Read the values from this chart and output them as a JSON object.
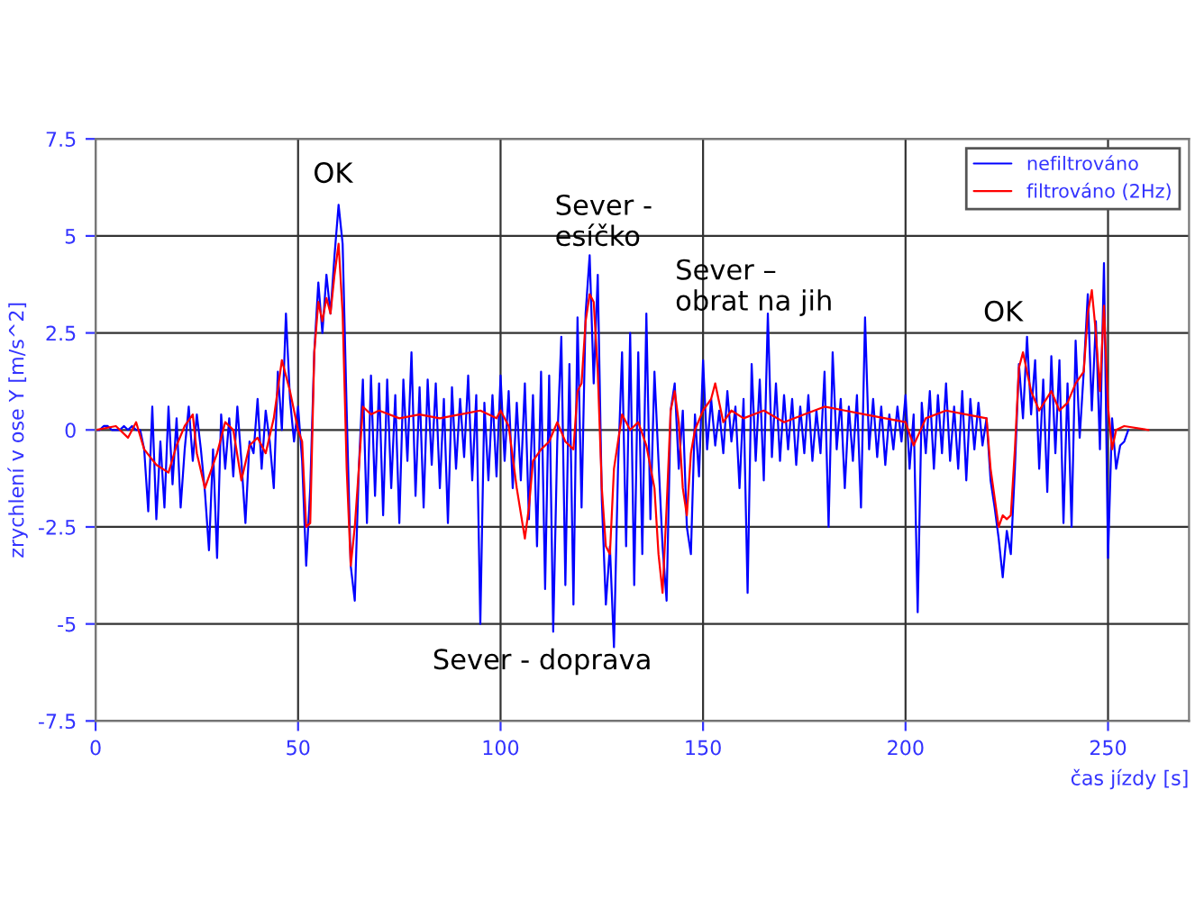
{
  "chart_data": {
    "type": "line",
    "ylabel": "zrychlení v ose Y [m/s^2]",
    "xlabel": "čas jízdy [s]",
    "xlim": [
      0,
      270
    ],
    "xticks": [
      0,
      50,
      100,
      150,
      200,
      250
    ],
    "ylim": [
      -7.5,
      7.5
    ],
    "yticks": [
      -7.5,
      -5,
      -2.5,
      0,
      2.5,
      5,
      7.5
    ],
    "grid": true,
    "legend": "top right",
    "line_style": "solid",
    "marker": "none",
    "series": [
      {
        "name": "nefiltrováno",
        "color": "#0000ff",
        "x": [
          0,
          1,
          2,
          3,
          4,
          5,
          6,
          7,
          8,
          9,
          10,
          11,
          12,
          13,
          14,
          15,
          16,
          17,
          18,
          19,
          20,
          21,
          22,
          23,
          24,
          25,
          26,
          27,
          28,
          29,
          30,
          31,
          32,
          33,
          34,
          35,
          36,
          37,
          38,
          39,
          40,
          41,
          42,
          43,
          44,
          45,
          46,
          47,
          48,
          49,
          50,
          51,
          52,
          53,
          54,
          55,
          56,
          57,
          58,
          59,
          60,
          61,
          62,
          63,
          64,
          65,
          66,
          67,
          68,
          69,
          70,
          71,
          72,
          73,
          74,
          75,
          76,
          77,
          78,
          79,
          80,
          81,
          82,
          83,
          84,
          85,
          86,
          87,
          88,
          89,
          90,
          91,
          92,
          93,
          94,
          95,
          96,
          97,
          98,
          99,
          100,
          101,
          102,
          103,
          104,
          105,
          106,
          107,
          108,
          109,
          110,
          111,
          112,
          113,
          114,
          115,
          116,
          117,
          118,
          119,
          120,
          121,
          122,
          123,
          124,
          125,
          126,
          127,
          128,
          129,
          130,
          131,
          132,
          133,
          134,
          135,
          136,
          137,
          138,
          139,
          140,
          141,
          142,
          143,
          144,
          145,
          146,
          147,
          148,
          149,
          150,
          151,
          152,
          153,
          154,
          155,
          156,
          157,
          158,
          159,
          160,
          161,
          162,
          163,
          164,
          165,
          166,
          167,
          168,
          169,
          170,
          171,
          172,
          173,
          174,
          175,
          176,
          177,
          178,
          179,
          180,
          181,
          182,
          183,
          184,
          185,
          186,
          187,
          188,
          189,
          190,
          191,
          192,
          193,
          194,
          195,
          196,
          197,
          198,
          199,
          200,
          201,
          202,
          203,
          204,
          205,
          206,
          207,
          208,
          209,
          210,
          211,
          212,
          213,
          214,
          215,
          216,
          217,
          218,
          219,
          220,
          221,
          222,
          223,
          224,
          225,
          226,
          227,
          228,
          229,
          230,
          231,
          232,
          233,
          234,
          235,
          236,
          237,
          238,
          239,
          240,
          241,
          242,
          243,
          244,
          245,
          246,
          247,
          248,
          249,
          250,
          251,
          252,
          253,
          254,
          255
        ],
        "values": [
          0,
          0,
          0.1,
          0.1,
          0,
          0,
          0,
          0.1,
          0,
          0.1,
          0,
          0,
          -0.5,
          -2.1,
          0.6,
          -2.3,
          -0.3,
          -2.0,
          0.6,
          -1.4,
          0.3,
          -2.0,
          -0.5,
          0.6,
          -0.8,
          0.4,
          -0.5,
          -1.6,
          -3.1,
          -0.5,
          -3.3,
          0.4,
          -1.0,
          0.3,
          -1.2,
          0.6,
          -0.8,
          -2.4,
          -0.3,
          -0.6,
          0.8,
          -1.0,
          0.5,
          -0.3,
          -1.5,
          1.5,
          0.0,
          3.0,
          0.8,
          -0.3,
          0.6,
          -0.8,
          -3.5,
          -1.5,
          2.0,
          3.8,
          2.5,
          4.0,
          3.0,
          4.5,
          5.8,
          4.8,
          0.5,
          -3.5,
          -4.4,
          -1.0,
          1.3,
          -2.4,
          1.4,
          -1.7,
          1.2,
          -2.2,
          1.3,
          -1.5,
          0.9,
          -2.4,
          1.3,
          -0.8,
          2.0,
          -1.7,
          1.1,
          -2.0,
          1.3,
          -0.9,
          1.2,
          -1.5,
          0.8,
          -2.4,
          1.1,
          -1.0,
          0.8,
          -0.7,
          1.4,
          -1.3,
          0.9,
          -5.0,
          0.7,
          -1.3,
          0.9,
          -1.2,
          1.4,
          -0.8,
          1.0,
          -1.5,
          0.7,
          -1.3,
          1.2,
          -2.3,
          0.9,
          -3.0,
          1.5,
          -4.1,
          1.4,
          -5.2,
          -0.3,
          2.4,
          -4.0,
          1.7,
          -4.5,
          2.9,
          -2.0,
          3.0,
          4.5,
          1.2,
          4.0,
          -1.8,
          -4.5,
          -3.0,
          -5.6,
          -1.0,
          2.0,
          -3.0,
          2.5,
          -4.0,
          2.0,
          -3.2,
          3.0,
          -2.3,
          1.5,
          -0.8,
          -3.0,
          -4.4,
          0.5,
          1.2,
          -1.0,
          0.5,
          -2.5,
          -3.2,
          0.4,
          -1.2,
          1.8,
          -0.5,
          0.8,
          -0.4,
          0.5,
          -0.6,
          1.0,
          -0.3,
          0.6,
          -1.5,
          0.8,
          -4.2,
          1.7,
          -0.8,
          1.3,
          -1.3,
          3.0,
          -0.7,
          1.2,
          -0.8,
          0.9,
          -0.5,
          0.8,
          -0.9,
          0.6,
          -0.6,
          0.9,
          -0.8,
          0.5,
          -0.6,
          1.5,
          -2.5,
          2.0,
          -0.5,
          0.8,
          -1.5,
          0.6,
          -0.8,
          0.9,
          -2.0,
          2.9,
          -0.5,
          0.8,
          -0.7,
          0.6,
          -0.9,
          0.4,
          -0.5,
          0.6,
          -0.3,
          0.9,
          -1.0,
          0.4,
          -4.7,
          0.7,
          -0.6,
          1.0,
          -1.0,
          0.9,
          -0.6,
          1.2,
          -0.8,
          0.6,
          -1.0,
          1.0,
          -1.3,
          0.8,
          -0.5,
          0.7,
          -0.4,
          0.3,
          -1.3,
          -2.0,
          -2.8,
          -3.8,
          -2.6,
          -3.2,
          -1.0,
          1.7,
          0.3,
          2.4,
          0.4,
          1.8,
          -1.0,
          1.3,
          -1.6,
          1.9,
          -0.6,
          1.8,
          -2.4,
          1.2,
          -2.5,
          2.3,
          -0.2,
          1.5,
          3.5,
          0.5,
          2.8,
          -0.5,
          4.3,
          -3.3,
          0.3,
          -1.0,
          -0.4,
          -0.3,
          0
        ]
      },
      {
        "name": "filtrováno (2Hz)",
        "color": "#ff0000",
        "x": [
          0,
          5,
          8,
          10,
          12,
          15,
          18,
          20,
          22,
          24,
          25,
          27,
          28,
          30,
          32,
          34,
          36,
          38,
          40,
          42,
          44,
          46,
          48,
          50,
          51,
          52,
          53,
          54,
          55,
          56,
          57,
          58,
          59,
          60,
          61,
          62,
          63,
          64,
          65,
          66,
          68,
          70,
          75,
          80,
          85,
          90,
          95,
          99,
          100,
          102,
          104,
          106,
          107,
          108,
          110,
          112,
          114,
          116,
          118,
          119,
          120,
          121,
          122,
          123,
          124,
          125,
          126,
          127,
          128,
          130,
          132,
          134,
          136,
          138,
          139,
          140,
          141,
          142,
          143,
          144,
          145,
          146,
          147,
          148,
          150,
          152,
          153,
          155,
          157,
          160,
          165,
          170,
          175,
          180,
          185,
          190,
          195,
          200,
          202,
          205,
          210,
          215,
          220,
          221,
          223,
          224,
          225,
          226,
          227,
          228,
          229,
          230,
          231,
          233,
          236,
          238,
          240,
          242,
          244,
          245,
          246,
          247,
          248,
          249,
          250,
          251,
          252,
          254,
          260
        ],
        "values": [
          0,
          0.1,
          -0.2,
          0.2,
          -0.5,
          -0.9,
          -1.1,
          -0.4,
          0.1,
          0.4,
          -0.6,
          -1.5,
          -1.2,
          -0.6,
          0.2,
          0.0,
          -1.3,
          -0.4,
          -0.2,
          -0.6,
          0.3,
          1.8,
          1.0,
          0.0,
          -0.3,
          -2.5,
          -2.4,
          2.0,
          3.3,
          2.8,
          3.4,
          3.0,
          4.0,
          4.8,
          3.0,
          -1.0,
          -3.5,
          -2.5,
          -1.0,
          0.6,
          0.4,
          0.5,
          0.3,
          0.4,
          0.3,
          0.4,
          0.5,
          0.3,
          0.5,
          0.1,
          -1.5,
          -2.8,
          -2.0,
          -0.8,
          -0.5,
          -0.3,
          0.2,
          -0.3,
          -0.5,
          1.0,
          1.2,
          2.8,
          3.5,
          3.3,
          1.5,
          -1.5,
          -3.0,
          -3.2,
          -1.0,
          0.4,
          0.0,
          0.2,
          -0.4,
          -1.5,
          -3.2,
          -4.2,
          -2.0,
          0.5,
          1.0,
          0.2,
          -1.5,
          -2.2,
          -0.6,
          0.0,
          0.5,
          0.8,
          1.2,
          0.2,
          0.5,
          0.3,
          0.5,
          0.2,
          0.4,
          0.6,
          0.5,
          0.4,
          0.3,
          0.2,
          -0.4,
          0.3,
          0.5,
          0.4,
          0.3,
          -1.0,
          -2.5,
          -2.2,
          -2.3,
          -2.2,
          -0.5,
          1.6,
          2.0,
          1.5,
          1.0,
          0.5,
          1.0,
          0.5,
          0.7,
          1.2,
          1.5,
          3.0,
          3.6,
          2.5,
          1.0,
          3.2,
          0.6,
          -0.5,
          0.0,
          0.1,
          0.0
        ]
      }
    ],
    "annotations": [
      "OK",
      "Sever -\nesíčko",
      "Sever –\nobrat na jih",
      "Sever - doprava",
      "OK"
    ]
  }
}
